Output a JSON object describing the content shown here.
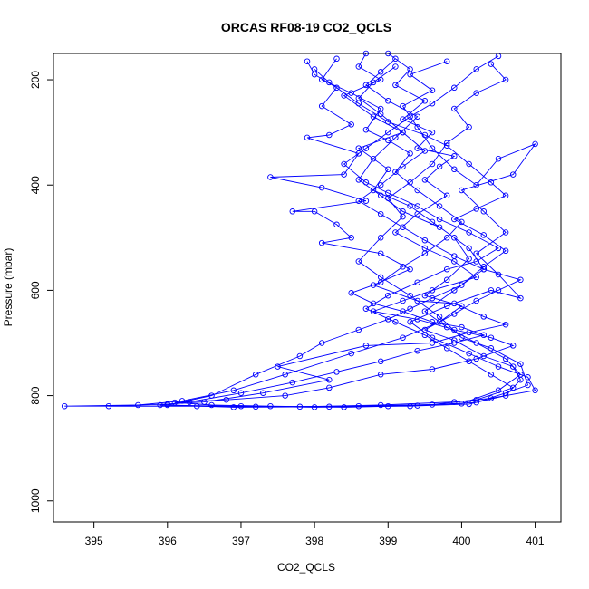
{
  "chart_data": {
    "type": "line",
    "title": "ORCAS RF08-19 CO2_QCLS",
    "xlabel": "CO2_QCLS",
    "ylabel": "Pressure (mbar)",
    "xlim": [
      394.45,
      401.35
    ],
    "ylim": [
      1040,
      150
    ],
    "y_inverted": true,
    "x_ticks": [
      395,
      396,
      397,
      398,
      399,
      400,
      401
    ],
    "y_ticks": [
      200,
      400,
      600,
      800,
      1000
    ],
    "marker": "open-circle",
    "color": "#0000ff",
    "grid": false,
    "series": [
      {
        "name": "",
        "points": [
          [
            398.7,
            150
          ],
          [
            398.6,
            175
          ],
          [
            398.9,
            200
          ],
          [
            398.4,
            230
          ],
          [
            398.8,
            270
          ],
          [
            399.2,
            300
          ],
          [
            398.6,
            330
          ],
          [
            399.0,
            370
          ],
          [
            398.8,
            410
          ],
          [
            399.3,
            440
          ],
          [
            399.6,
            470
          ],
          [
            399.9,
            500
          ],
          [
            400.1,
            540
          ],
          [
            399.8,
            580
          ],
          [
            399.5,
            610
          ],
          [
            400.0,
            630
          ],
          [
            399.7,
            660
          ],
          [
            399.2,
            690
          ],
          [
            398.5,
            720
          ],
          [
            397.6,
            760
          ],
          [
            396.9,
            790
          ],
          [
            396.2,
            810
          ],
          [
            395.6,
            818
          ],
          [
            394.6,
            820
          ],
          [
            397.0,
            820
          ],
          [
            398.0,
            822
          ],
          [
            399.0,
            820
          ],
          [
            400.0,
            815
          ],
          [
            400.5,
            790
          ],
          [
            400.8,
            760
          ],
          [
            400.6,
            730
          ],
          [
            400.2,
            700
          ],
          [
            399.8,
            670
          ],
          [
            399.5,
            640
          ],
          [
            399.9,
            600
          ],
          [
            400.3,
            560
          ],
          [
            400.1,
            520
          ],
          [
            399.7,
            480
          ],
          [
            399.2,
            450
          ],
          [
            398.9,
            420
          ],
          [
            398.6,
            390
          ],
          [
            398.8,
            350
          ],
          [
            399.1,
            310
          ],
          [
            399.4,
            270
          ],
          [
            399.0,
            240
          ],
          [
            398.7,
            210
          ],
          [
            398.9,
            185
          ],
          [
            399.1,
            160
          ]
        ]
      },
      {
        "name": "",
        "points": [
          [
            397.9,
            165
          ],
          [
            398.0,
            190
          ],
          [
            398.3,
            215
          ],
          [
            398.1,
            250
          ],
          [
            398.5,
            285
          ],
          [
            398.2,
            305
          ],
          [
            397.9,
            310
          ],
          [
            398.6,
            340
          ],
          [
            398.4,
            380
          ],
          [
            397.4,
            385
          ],
          [
            398.1,
            405
          ],
          [
            398.7,
            430
          ],
          [
            397.7,
            450
          ],
          [
            398.0,
            450
          ],
          [
            398.3,
            475
          ],
          [
            398.5,
            500
          ],
          [
            398.1,
            510
          ],
          [
            398.9,
            530
          ],
          [
            399.3,
            560
          ],
          [
            398.8,
            590
          ],
          [
            399.4,
            620
          ],
          [
            399.9,
            625
          ],
          [
            400.3,
            650
          ],
          [
            400.6,
            665
          ],
          [
            400.1,
            680
          ],
          [
            399.6,
            700
          ],
          [
            398.7,
            705
          ],
          [
            397.5,
            745
          ],
          [
            398.2,
            770
          ],
          [
            397.3,
            795
          ],
          [
            396.5,
            812
          ],
          [
            396.0,
            816
          ],
          [
            395.2,
            820
          ],
          [
            396.4,
            820
          ],
          [
            397.8,
            821
          ],
          [
            398.9,
            818
          ],
          [
            399.9,
            812
          ],
          [
            400.4,
            805
          ],
          [
            401.0,
            790
          ],
          [
            400.9,
            765
          ],
          [
            400.5,
            745
          ],
          [
            400.1,
            720
          ],
          [
            399.6,
            690
          ],
          [
            399.3,
            660
          ],
          [
            399.8,
            630
          ],
          [
            400.4,
            600
          ],
          [
            400.8,
            615
          ],
          [
            400.5,
            570
          ],
          [
            400.2,
            530
          ],
          [
            400.6,
            490
          ],
          [
            400.3,
            450
          ],
          [
            400.0,
            410
          ],
          [
            400.7,
            380
          ],
          [
            401.0,
            322
          ],
          [
            400.5,
            350
          ],
          [
            400.2,
            400
          ],
          [
            399.9,
            370
          ],
          [
            399.6,
            330
          ],
          [
            399.4,
            290
          ],
          [
            399.2,
            250
          ],
          [
            399.6,
            220
          ],
          [
            399.3,
            190
          ],
          [
            399.8,
            165
          ]
        ]
      },
      {
        "name": "",
        "points": [
          [
            399.0,
            150
          ],
          [
            399.3,
            180
          ],
          [
            399.1,
            210
          ],
          [
            399.5,
            240
          ],
          [
            399.2,
            275
          ],
          [
            399.6,
            300
          ],
          [
            399.4,
            330
          ],
          [
            399.9,
            345
          ],
          [
            399.7,
            365
          ],
          [
            399.5,
            390
          ],
          [
            399.8,
            420
          ],
          [
            399.4,
            455
          ],
          [
            399.1,
            490
          ],
          [
            399.5,
            520
          ],
          [
            399.9,
            545
          ],
          [
            400.2,
            575
          ],
          [
            399.6,
            600
          ],
          [
            399.2,
            620
          ],
          [
            398.8,
            640
          ],
          [
            399.4,
            655
          ],
          [
            399.9,
            675
          ],
          [
            400.4,
            690
          ],
          [
            400.7,
            705
          ],
          [
            400.2,
            730
          ],
          [
            399.6,
            750
          ],
          [
            398.9,
            760
          ],
          [
            398.2,
            785
          ],
          [
            397.6,
            800
          ],
          [
            396.8,
            808
          ],
          [
            396.1,
            813
          ],
          [
            396.6,
            818
          ],
          [
            397.4,
            820
          ],
          [
            398.4,
            822
          ],
          [
            399.4,
            819
          ],
          [
            400.2,
            813
          ],
          [
            400.6,
            795
          ],
          [
            400.9,
            780
          ],
          [
            400.8,
            740
          ],
          [
            400.4,
            710
          ],
          [
            400.0,
            690
          ],
          [
            399.7,
            650
          ],
          [
            399.3,
            610
          ],
          [
            398.9,
            575
          ],
          [
            398.6,
            545
          ],
          [
            398.9,
            500
          ],
          [
            399.2,
            460
          ],
          [
            399.0,
            425
          ],
          [
            399.3,
            395
          ],
          [
            399.6,
            360
          ],
          [
            399.8,
            320
          ],
          [
            400.1,
            290
          ],
          [
            399.9,
            255
          ],
          [
            400.2,
            225
          ],
          [
            400.6,
            200
          ],
          [
            400.4,
            170
          ]
        ]
      },
      {
        "name": "",
        "points": [
          [
            398.3,
            160
          ],
          [
            398.1,
            200
          ],
          [
            398.5,
            225
          ],
          [
            398.9,
            255
          ],
          [
            398.7,
            295
          ],
          [
            399.0,
            315
          ],
          [
            399.3,
            340
          ],
          [
            399.1,
            375
          ],
          [
            399.4,
            410
          ],
          [
            399.7,
            440
          ],
          [
            400.0,
            470
          ],
          [
            399.8,
            500
          ],
          [
            399.5,
            530
          ],
          [
            399.2,
            555
          ],
          [
            398.9,
            585
          ],
          [
            398.5,
            605
          ],
          [
            398.8,
            625
          ],
          [
            399.2,
            640
          ],
          [
            399.6,
            660
          ],
          [
            400.0,
            670
          ],
          [
            400.3,
            685
          ],
          [
            399.9,
            700
          ],
          [
            399.4,
            715
          ],
          [
            398.9,
            735
          ],
          [
            398.3,
            755
          ],
          [
            397.7,
            775
          ],
          [
            397.0,
            795
          ],
          [
            396.3,
            812
          ],
          [
            395.9,
            818
          ],
          [
            397.2,
            821
          ],
          [
            398.6,
            820
          ],
          [
            399.6,
            817
          ],
          [
            400.2,
            808
          ],
          [
            400.7,
            785
          ],
          [
            400.4,
            760
          ],
          [
            400.1,
            735
          ],
          [
            399.8,
            710
          ],
          [
            399.5,
            685
          ],
          [
            399.1,
            660
          ],
          [
            398.7,
            635
          ],
          [
            399.0,
            610
          ],
          [
            399.4,
            585
          ],
          [
            399.8,
            560
          ],
          [
            400.2,
            545
          ],
          [
            400.5,
            520
          ],
          [
            400.1,
            490
          ],
          [
            399.7,
            465
          ],
          [
            399.4,
            440
          ],
          [
            399.0,
            415
          ],
          [
            398.7,
            395
          ],
          [
            398.4,
            360
          ],
          [
            398.7,
            330
          ],
          [
            399.0,
            300
          ],
          [
            399.3,
            270
          ],
          [
            399.6,
            245
          ],
          [
            399.9,
            215
          ],
          [
            400.2,
            180
          ],
          [
            400.5,
            155
          ]
        ]
      },
      {
        "name": "",
        "points": [
          [
            398.0,
            180
          ],
          [
            398.2,
            205
          ],
          [
            398.6,
            245
          ],
          [
            399.0,
            280
          ],
          [
            399.5,
            305
          ],
          [
            399.8,
            325
          ],
          [
            400.1,
            360
          ],
          [
            400.4,
            395
          ],
          [
            400.6,
            420
          ],
          [
            400.2,
            445
          ],
          [
            399.9,
            465
          ],
          [
            400.3,
            495
          ],
          [
            400.6,
            525
          ],
          [
            400.3,
            555
          ],
          [
            400.0,
            590
          ],
          [
            399.6,
            615
          ],
          [
            399.3,
            635
          ],
          [
            399.0,
            655
          ],
          [
            398.6,
            675
          ],
          [
            398.1,
            700
          ],
          [
            397.8,
            725
          ],
          [
            397.2,
            760
          ],
          [
            396.6,
            800
          ],
          [
            396.0,
            818
          ],
          [
            396.9,
            822
          ],
          [
            398.2,
            821
          ],
          [
            399.3,
            820
          ],
          [
            400.1,
            816
          ],
          [
            400.6,
            800
          ],
          [
            400.8,
            770
          ],
          [
            400.7,
            745
          ],
          [
            400.3,
            725
          ],
          [
            399.9,
            695
          ],
          [
            399.5,
            675
          ],
          [
            399.9,
            645
          ],
          [
            400.2,
            620
          ],
          [
            400.5,
            600
          ],
          [
            400.8,
            580
          ],
          [
            400.3,
            560
          ],
          [
            399.9,
            535
          ],
          [
            399.5,
            505
          ],
          [
            399.2,
            480
          ],
          [
            398.9,
            455
          ],
          [
            398.6,
            430
          ],
          [
            398.9,
            400
          ],
          [
            399.2,
            365
          ],
          [
            399.5,
            335
          ],
          [
            399.2,
            300
          ],
          [
            398.9,
            265
          ],
          [
            398.6,
            235
          ],
          [
            398.8,
            205
          ],
          [
            399.1,
            175
          ]
        ]
      }
    ]
  }
}
